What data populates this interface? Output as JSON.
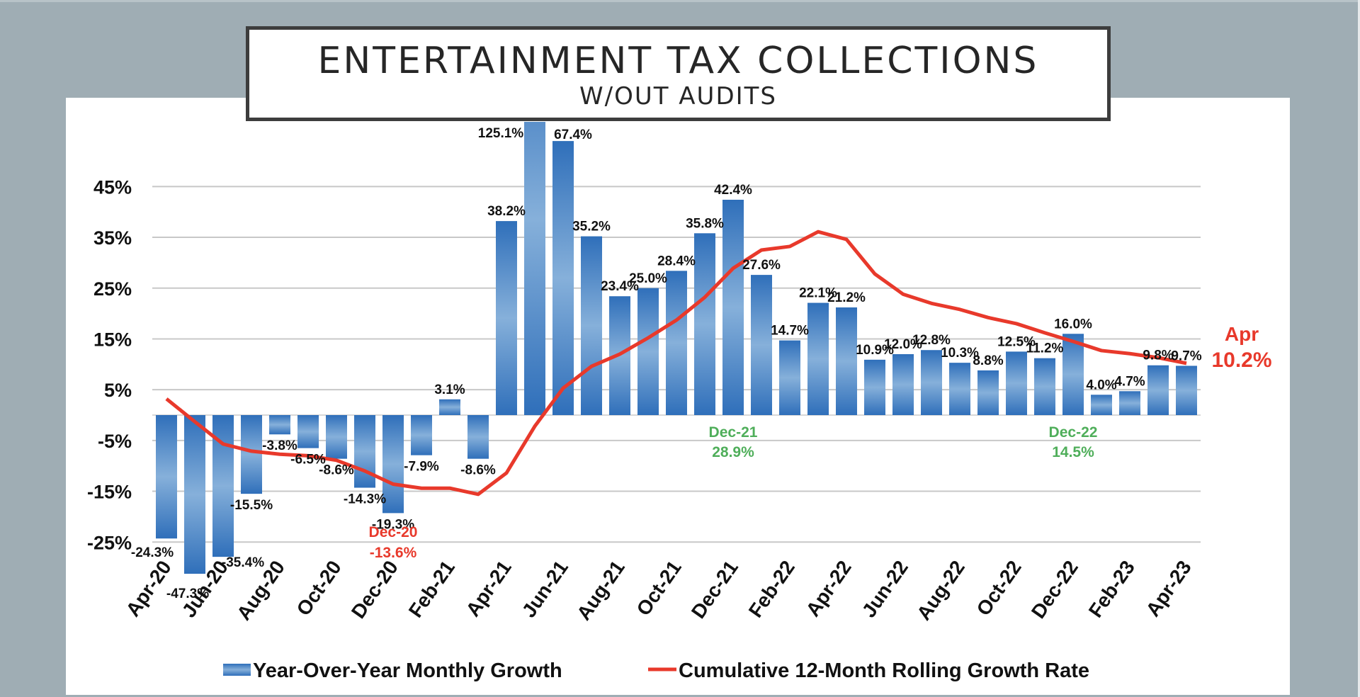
{
  "title": {
    "main": "ENTERTAINMENT TAX COLLECTIONS",
    "sub": "W/OUT AUDITS"
  },
  "colors": {
    "background": "#9fadb4",
    "bar_dark": "#2f6fba",
    "bar_light": "#86b0da",
    "line": "#e8392b",
    "annotation_red": "#e8392b",
    "annotation_green": "#4fae5a",
    "grid": "#c8c8c8"
  },
  "chart_data": {
    "type": "bar",
    "title": "ENTERTAINMENT TAX COLLECTIONS W/OUT AUDITS",
    "xlabel": "",
    "ylabel": "",
    "ylim": [
      -25,
      45
    ],
    "grid": true,
    "yticks": [
      45,
      35,
      25,
      15,
      5,
      -5,
      -15,
      -25
    ],
    "ytick_labels": [
      "45%",
      "35%",
      "25%",
      "15%",
      "5%",
      "-5%",
      "-15%",
      "-25%"
    ],
    "categories": [
      "Apr-20",
      "May-20",
      "Jun-20",
      "Jul-20",
      "Aug-20",
      "Sep-20",
      "Oct-20",
      "Nov-20",
      "Dec-20",
      "Jan-21",
      "Feb-21",
      "Mar-21",
      "Apr-21",
      "May-21",
      "Jun-21",
      "Jul-21",
      "Aug-21",
      "Sep-21",
      "Oct-21",
      "Nov-21",
      "Dec-21",
      "Jan-22",
      "Feb-22",
      "Mar-22",
      "Apr-22",
      "May-22",
      "Jun-22",
      "Jul-22",
      "Aug-22",
      "Sep-22",
      "Oct-22",
      "Nov-22",
      "Dec-22",
      "Jan-23",
      "Feb-23",
      "Mar-23",
      "Apr-23"
    ],
    "xtick_labels": [
      "Apr-20",
      "Jun-20",
      "Aug-20",
      "Oct-20",
      "Dec-20",
      "Feb-21",
      "Apr-21",
      "Jun-21",
      "Aug-21",
      "Oct-21",
      "Dec-21",
      "Feb-22",
      "Apr-22",
      "Jun-22",
      "Aug-22",
      "Oct-22",
      "Dec-22",
      "Feb-23",
      "Apr-23"
    ],
    "legend_position": "bottom",
    "series": [
      {
        "name": "Year-Over-Year Monthly Growth",
        "type": "bar",
        "values": [
          -24.3,
          -47.3,
          -35.4,
          -15.5,
          -3.8,
          -6.5,
          -8.6,
          -14.3,
          -19.3,
          -7.9,
          3.1,
          -8.6,
          38.2,
          125.1,
          67.4,
          35.2,
          23.4,
          25.0,
          28.4,
          35.8,
          42.4,
          27.6,
          14.7,
          22.1,
          21.2,
          10.9,
          12.0,
          12.8,
          10.3,
          8.8,
          12.5,
          11.2,
          16.0,
          4.0,
          4.7,
          9.8,
          9.7
        ],
        "labels": [
          "-24.3%",
          "-47.3%",
          "-35.4%",
          "-15.5%",
          "-3.8%",
          "-6.5%",
          "-8.6%",
          "-14.3%",
          "-19.3%",
          "-7.9%",
          "3.1%",
          "-8.6%",
          "38.2%",
          "125.1%",
          "67.4%",
          "35.2%",
          "23.4%",
          "25.0%",
          "28.4%",
          "35.8%",
          "42.4%",
          "27.6%",
          "14.7%",
          "22.1%",
          "21.2%",
          "10.9%",
          "12.0%",
          "12.8%",
          "10.3%",
          "8.8%",
          "12.5%",
          "11.2%",
          "16.0%",
          "4.0%",
          "4.7%",
          "9.8%",
          "9.7%"
        ]
      },
      {
        "name": "Cumulative 12-Month Rolling Growth Rate",
        "type": "line",
        "values": [
          3.2,
          -1.3,
          -5.7,
          -7.1,
          -7.7,
          -8.0,
          -8.9,
          -11.0,
          -13.6,
          -14.4,
          -14.4,
          -15.6,
          -11.4,
          -2.2,
          5.3,
          9.6,
          12.0,
          15.2,
          18.7,
          23.2,
          28.9,
          32.5,
          33.2,
          36.1,
          34.6,
          27.8,
          23.8,
          22.0,
          20.8,
          19.2,
          18.0,
          16.2,
          14.5,
          12.7,
          12.1,
          11.3,
          10.2
        ]
      }
    ],
    "annotations": [
      {
        "category": "Dec-20",
        "line1": "Dec-20",
        "line2": "-13.6%",
        "color": "red"
      },
      {
        "category": "Dec-21",
        "line1": "Dec-21",
        "line2": "28.9%",
        "color": "green"
      },
      {
        "category": "Dec-22",
        "line1": "Dec-22",
        "line2": "14.5%",
        "color": "green"
      },
      {
        "category": "Apr-23",
        "line1": "Apr",
        "line2": "10.2%",
        "color": "red"
      }
    ]
  },
  "legend": {
    "bar_label": "Year-Over-Year Monthly Growth",
    "line_label": "Cumulative 12-Month Rolling Growth Rate"
  }
}
